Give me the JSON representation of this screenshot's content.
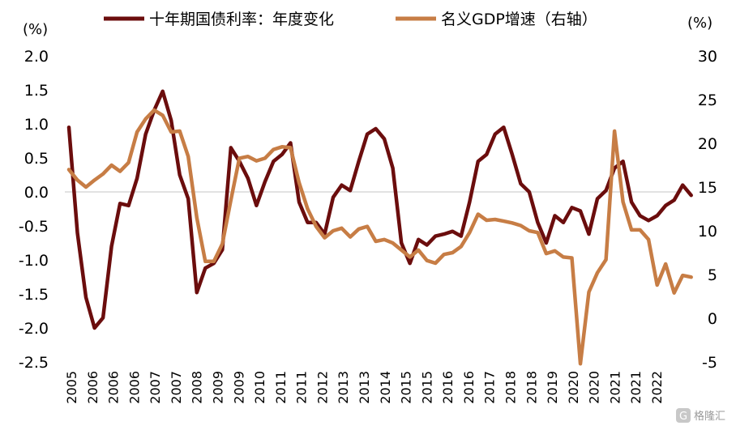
{
  "chart_data": {
    "type": "line",
    "legend_position": "top",
    "grid": false,
    "left_axis": {
      "unit_label": "(%)",
      "ylim": [
        -2.5,
        2.0
      ],
      "ticks": [
        "2.0",
        "1.5",
        "1.0",
        "0.5",
        "0.0",
        "-0.5",
        "-1.0",
        "-1.5",
        "-2.0",
        "-2.5"
      ],
      "tick_values": [
        2.0,
        1.5,
        1.0,
        0.5,
        0.0,
        -0.5,
        -1.0,
        -1.5,
        -2.0,
        -2.5
      ]
    },
    "right_axis": {
      "unit_label": "(%)",
      "ylim": [
        -5,
        30
      ],
      "ticks": [
        "30",
        "25",
        "20",
        "15",
        "10",
        "5",
        "0",
        "-5"
      ],
      "tick_values": [
        30,
        25,
        20,
        15,
        10,
        5,
        0,
        -5
      ]
    },
    "x_labels": [
      "2005",
      "2006",
      "2006",
      "2006",
      "2007",
      "2007",
      "2008",
      "2009",
      "2009",
      "2010",
      "2011",
      "2011",
      "2012",
      "2013",
      "2013",
      "2014",
      "2015",
      "2015",
      "2016",
      "2016",
      "2017",
      "2018",
      "2018",
      "2019",
      "2020",
      "2020",
      "2021",
      "2021",
      "2022"
    ],
    "x_range": [
      2005.0,
      2022.9
    ],
    "series": [
      {
        "name": "十年期国债利率：年度变化",
        "axis": "left",
        "color": "#6b0d0d",
        "points": [
          [
            2005.0,
            0.95
          ],
          [
            2005.25,
            -0.6
          ],
          [
            2005.5,
            -1.55
          ],
          [
            2005.75,
            -2.0
          ],
          [
            2006.0,
            -1.85
          ],
          [
            2006.25,
            -0.8
          ],
          [
            2006.5,
            -0.17
          ],
          [
            2006.75,
            -0.2
          ],
          [
            2007.0,
            0.2
          ],
          [
            2007.25,
            0.85
          ],
          [
            2007.5,
            1.2
          ],
          [
            2007.75,
            1.48
          ],
          [
            2008.0,
            1.05
          ],
          [
            2008.25,
            0.25
          ],
          [
            2008.5,
            -0.1
          ],
          [
            2008.75,
            -1.48
          ],
          [
            2009.0,
            -1.12
          ],
          [
            2009.25,
            -1.05
          ],
          [
            2009.5,
            -0.85
          ],
          [
            2009.75,
            0.65
          ],
          [
            2010.0,
            0.45
          ],
          [
            2010.25,
            0.2
          ],
          [
            2010.5,
            -0.2
          ],
          [
            2010.75,
            0.15
          ],
          [
            2011.0,
            0.45
          ],
          [
            2011.25,
            0.55
          ],
          [
            2011.5,
            0.72
          ],
          [
            2011.75,
            -0.15
          ],
          [
            2012.0,
            -0.45
          ],
          [
            2012.25,
            -0.45
          ],
          [
            2012.5,
            -0.62
          ],
          [
            2012.75,
            -0.08
          ],
          [
            2013.0,
            0.1
          ],
          [
            2013.25,
            0.02
          ],
          [
            2013.5,
            0.45
          ],
          [
            2013.75,
            0.85
          ],
          [
            2014.0,
            0.93
          ],
          [
            2014.25,
            0.78
          ],
          [
            2014.5,
            0.35
          ],
          [
            2014.75,
            -0.75
          ],
          [
            2015.0,
            -1.05
          ],
          [
            2015.25,
            -0.7
          ],
          [
            2015.5,
            -0.78
          ],
          [
            2015.75,
            -0.65
          ],
          [
            2016.0,
            -0.62
          ],
          [
            2016.25,
            -0.58
          ],
          [
            2016.5,
            -0.65
          ],
          [
            2016.75,
            -0.15
          ],
          [
            2017.0,
            0.45
          ],
          [
            2017.25,
            0.55
          ],
          [
            2017.5,
            0.85
          ],
          [
            2017.75,
            0.95
          ],
          [
            2018.0,
            0.55
          ],
          [
            2018.25,
            0.12
          ],
          [
            2018.5,
            0.0
          ],
          [
            2018.75,
            -0.45
          ],
          [
            2019.0,
            -0.75
          ],
          [
            2019.25,
            -0.35
          ],
          [
            2019.5,
            -0.45
          ],
          [
            2019.75,
            -0.23
          ],
          [
            2020.0,
            -0.28
          ],
          [
            2020.25,
            -0.62
          ],
          [
            2020.5,
            -0.1
          ],
          [
            2020.75,
            0.02
          ],
          [
            2021.0,
            0.35
          ],
          [
            2021.25,
            0.45
          ],
          [
            2021.5,
            -0.15
          ],
          [
            2021.75,
            -0.35
          ],
          [
            2022.0,
            -0.42
          ],
          [
            2022.25,
            -0.35
          ],
          [
            2022.5,
            -0.2
          ],
          [
            2022.75,
            -0.12
          ],
          [
            2023.0,
            0.1
          ],
          [
            2023.25,
            -0.05
          ]
        ]
      },
      {
        "name": "名义GDP增速（右轴）",
        "axis": "right",
        "color": "#c77d45",
        "points": [
          [
            2005.0,
            17.0
          ],
          [
            2005.25,
            15.8
          ],
          [
            2005.5,
            15.0
          ],
          [
            2005.75,
            15.8
          ],
          [
            2006.0,
            16.5
          ],
          [
            2006.25,
            17.5
          ],
          [
            2006.5,
            16.8
          ],
          [
            2006.75,
            17.8
          ],
          [
            2007.0,
            21.3
          ],
          [
            2007.25,
            22.8
          ],
          [
            2007.5,
            23.8
          ],
          [
            2007.75,
            23.2
          ],
          [
            2008.0,
            21.3
          ],
          [
            2008.25,
            21.4
          ],
          [
            2008.5,
            18.5
          ],
          [
            2008.75,
            11.5
          ],
          [
            2009.0,
            6.5
          ],
          [
            2009.25,
            6.5
          ],
          [
            2009.5,
            8.5
          ],
          [
            2009.75,
            13.5
          ],
          [
            2010.0,
            18.3
          ],
          [
            2010.25,
            18.5
          ],
          [
            2010.5,
            18.0
          ],
          [
            2010.75,
            18.3
          ],
          [
            2011.0,
            19.3
          ],
          [
            2011.25,
            19.6
          ],
          [
            2011.5,
            19.5
          ],
          [
            2011.75,
            15.5
          ],
          [
            2012.0,
            12.5
          ],
          [
            2012.25,
            10.5
          ],
          [
            2012.5,
            9.2
          ],
          [
            2012.75,
            10.0
          ],
          [
            2013.0,
            10.3
          ],
          [
            2013.25,
            9.3
          ],
          [
            2013.5,
            10.2
          ],
          [
            2013.75,
            10.5
          ],
          [
            2014.0,
            8.8
          ],
          [
            2014.25,
            9.0
          ],
          [
            2014.5,
            8.6
          ],
          [
            2014.75,
            7.8
          ],
          [
            2015.0,
            7.0
          ],
          [
            2015.25,
            7.8
          ],
          [
            2015.5,
            6.6
          ],
          [
            2015.75,
            6.3
          ],
          [
            2016.0,
            7.3
          ],
          [
            2016.25,
            7.5
          ],
          [
            2016.5,
            8.2
          ],
          [
            2016.75,
            9.8
          ],
          [
            2017.0,
            11.9
          ],
          [
            2017.25,
            11.2
          ],
          [
            2017.5,
            11.3
          ],
          [
            2017.75,
            11.1
          ],
          [
            2018.0,
            10.9
          ],
          [
            2018.25,
            10.6
          ],
          [
            2018.5,
            10.0
          ],
          [
            2018.75,
            9.8
          ],
          [
            2019.0,
            7.4
          ],
          [
            2019.25,
            7.7
          ],
          [
            2019.5,
            7.0
          ],
          [
            2019.75,
            6.9
          ],
          [
            2020.0,
            -5.2
          ],
          [
            2020.25,
            3.0
          ],
          [
            2020.5,
            5.2
          ],
          [
            2020.75,
            6.7
          ],
          [
            2021.0,
            21.4
          ],
          [
            2021.25,
            13.3
          ],
          [
            2021.5,
            10.1
          ],
          [
            2021.75,
            10.1
          ],
          [
            2022.0,
            9.0
          ],
          [
            2022.25,
            3.8
          ],
          [
            2022.5,
            6.2
          ],
          [
            2022.75,
            2.9
          ],
          [
            2023.0,
            4.9
          ],
          [
            2023.25,
            4.7
          ]
        ]
      }
    ]
  },
  "watermark": "格隆汇"
}
